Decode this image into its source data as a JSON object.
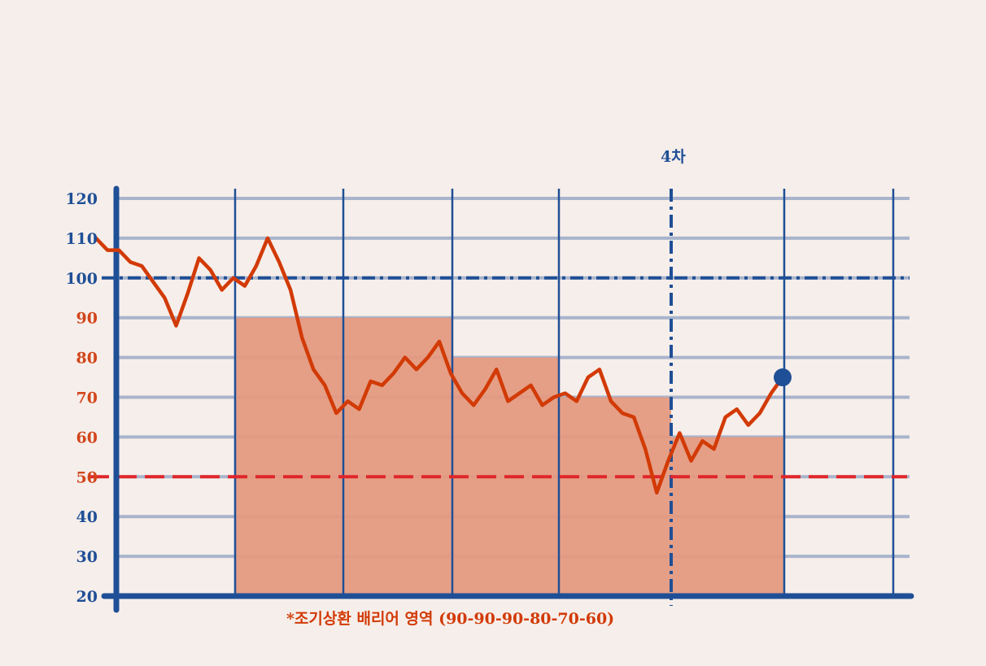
{
  "chart_data": {
    "type": "line",
    "title": "",
    "xlabel": "",
    "ylabel": "",
    "ylim": [
      20,
      120
    ],
    "yticks": [
      120,
      110,
      100,
      90,
      80,
      70,
      60,
      50,
      40,
      30,
      20
    ],
    "grid": true,
    "annotations": {
      "marker_label": "4차",
      "caption": "*조기상환 배리어 영역 (90-90-90-80-70-60)"
    },
    "reference_lines": {
      "upper": 100,
      "knock_in": 50
    },
    "barrier_levels": [
      90,
      90,
      90,
      80,
      70,
      60
    ],
    "series": [
      {
        "values": [
          110,
          107,
          107,
          104,
          103,
          99,
          95,
          88,
          96,
          105,
          102,
          97,
          100,
          98,
          103,
          110,
          104,
          97,
          85,
          77,
          73,
          66,
          69,
          67,
          74,
          73,
          76,
          80,
          77,
          80,
          84,
          76,
          71,
          68,
          72,
          77,
          69,
          71,
          73,
          68,
          70,
          71,
          69,
          75,
          77,
          69,
          66,
          65,
          57,
          46,
          54,
          61,
          54,
          59,
          57,
          65,
          67,
          63,
          66,
          71,
          75
        ]
      }
    ]
  },
  "colors": {
    "background": "#f6eeea",
    "axis": "#1f4f96",
    "grid": "#a9b4cc",
    "line": "#d23a06",
    "barrier_fill": "#e49a81",
    "knock_in": "#e0262a",
    "dot": "#1f4f96",
    "tick_red": "#d2451b"
  }
}
